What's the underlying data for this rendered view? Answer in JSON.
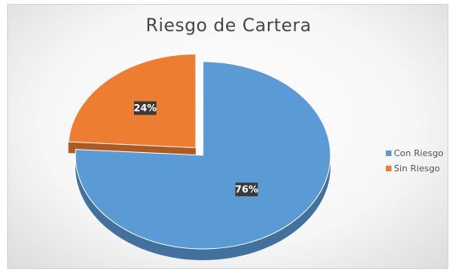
{
  "chart_data": {
    "type": "pie",
    "title": "Riesgo de Cartera",
    "labels": [
      "Con Riesgo",
      "Sin Riesgo"
    ],
    "values": [
      76,
      24
    ],
    "data_labels": [
      "76%",
      "24%"
    ],
    "colors": [
      "#5b9bd5",
      "#ed7d31"
    ],
    "exploded": [
      "Sin Riesgo"
    ],
    "style": "3d",
    "legend_position": "right"
  }
}
